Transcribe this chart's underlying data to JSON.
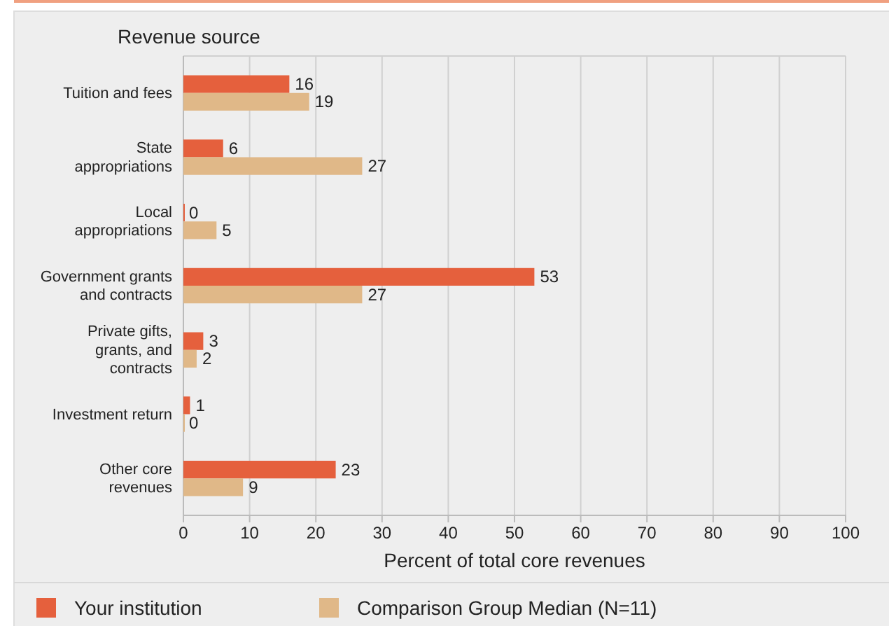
{
  "chart_data": {
    "type": "bar",
    "orientation": "horizontal",
    "ylabel": "Revenue source",
    "xlabel": "Percent of total core revenues",
    "categories": [
      "Tuition and fees",
      "State appropriations",
      "Local appropriations",
      "Government grants and contracts",
      "Private gifts, grants, and contracts",
      "Investment return",
      "Other core revenues"
    ],
    "series": [
      {
        "name": "Your institution",
        "color": "#e5603d",
        "values": [
          16,
          6,
          0,
          53,
          3,
          1,
          23
        ]
      },
      {
        "name": "Comparison Group Median (N=11)",
        "color": "#e0b888",
        "values": [
          19,
          27,
          5,
          27,
          2,
          0,
          9
        ]
      }
    ],
    "xlim": [
      0,
      100
    ],
    "xticks": [
      0,
      10,
      20,
      30,
      40,
      50,
      60,
      70,
      80,
      90,
      100
    ],
    "grid": "x",
    "data_labels": true,
    "legend": "bottom"
  }
}
